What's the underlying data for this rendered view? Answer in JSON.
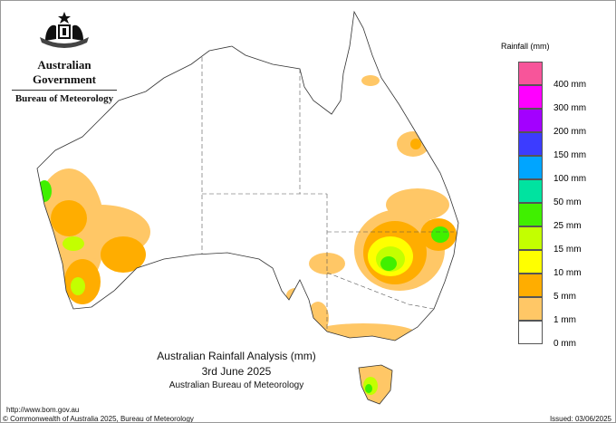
{
  "header": {
    "government": "Australian Government",
    "bureau": "Bureau of Meteorology",
    "logo": "commonwealth-coat-of-arms"
  },
  "legend": {
    "title": "Rainfall (mm)",
    "bins": [
      {
        "label": "400 mm",
        "color": "#f7559a"
      },
      {
        "label": "300 mm",
        "color": "#ff00ff"
      },
      {
        "label": "200 mm",
        "color": "#a300ff"
      },
      {
        "label": "150 mm",
        "color": "#3c3cff"
      },
      {
        "label": "100 mm",
        "color": "#00a5ff"
      },
      {
        "label": "50 mm",
        "color": "#00e3a0"
      },
      {
        "label": "25 mm",
        "color": "#40f000"
      },
      {
        "label": "15 mm",
        "color": "#c3ff00"
      },
      {
        "label": "10 mm",
        "color": "#ffff00"
      },
      {
        "label": "5 mm",
        "color": "#ffad00"
      },
      {
        "label": "1 mm",
        "color": "#ffc766"
      },
      {
        "label": "0 mm",
        "color": "#ffffff"
      }
    ]
  },
  "title": {
    "line1": "Australian Rainfall Analysis (mm)",
    "line2": "3rd June 2025",
    "line3": "Australian Bureau of Meteorology"
  },
  "footer": {
    "url": "http://www.bom.gov.au",
    "copyright": "© Commonwealth of Australia 2025, Bureau of Meteorology",
    "issued": "Issued: 03/06/2025"
  }
}
